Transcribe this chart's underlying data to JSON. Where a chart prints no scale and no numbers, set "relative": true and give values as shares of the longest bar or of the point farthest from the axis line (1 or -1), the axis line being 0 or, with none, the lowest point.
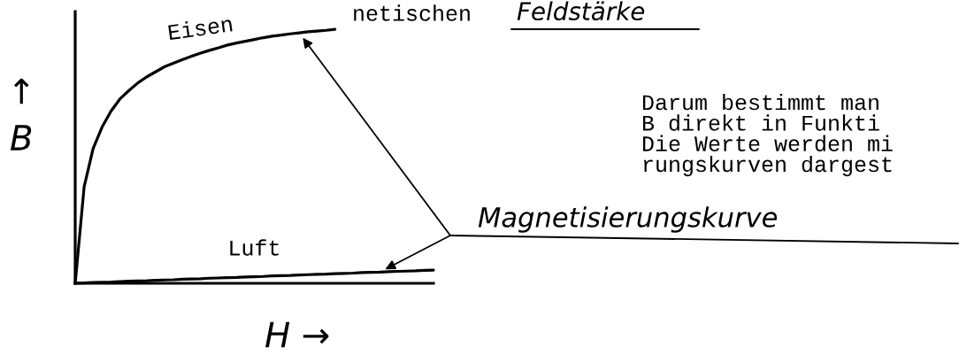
{
  "chart_data": {
    "type": "line",
    "relative": true,
    "line_style": "solid",
    "xlabel": "H →",
    "ylabel": "↑\nB",
    "categories": [
      null,
      null,
      null,
      null,
      null,
      null,
      null,
      null,
      null,
      null,
      null,
      null,
      null,
      null,
      null,
      null,
      null,
      null,
      null,
      null,
      null,
      null,
      null,
      null,
      null,
      null,
      null,
      null,
      null,
      null,
      null,
      null,
      null,
      null,
      null,
      null,
      null,
      null,
      null,
      null,
      null
    ],
    "series": [
      {
        "name": "Eisen",
        "color": "#000000",
        "values": [
          0,
          0.38,
          0.53,
          0.615,
          0.678,
          0.726,
          0.759,
          0.789,
          0.813,
          0.833,
          0.853,
          0.867,
          0.881,
          0.894,
          0.906,
          0.917,
          0.927,
          0.938,
          0.946,
          0.953,
          0.96,
          0.967,
          0.973,
          0.977,
          0.982,
          0.986,
          0.99,
          0.993,
          0.996,
          1.0,
          null,
          null,
          null,
          null,
          null,
          null,
          null,
          null,
          null,
          null,
          null
        ]
      },
      {
        "name": "Luft",
        "color": "#000000",
        "values": [
          0,
          0.001,
          0.003,
          0.004,
          0.005,
          0.007,
          0.008,
          0.009,
          0.01,
          0.012,
          0.013,
          0.014,
          0.016,
          0.017,
          0.018,
          0.02,
          0.021,
          0.022,
          0.023,
          0.025,
          0.026,
          0.027,
          0.029,
          0.03,
          0.031,
          0.033,
          0.034,
          0.035,
          0.036,
          0.038,
          0.039,
          0.04,
          0.042,
          0.043,
          0.044,
          0.046,
          0.047,
          0.048,
          0.049,
          0.051,
          0.052
        ]
      }
    ],
    "annotations": [
      "netischen",
      "Feldstärke",
      "Darum bestimmt man\nB direkt in Funkti\nDie Werte werden mi\nrungskurven dargest",
      "Magnetisierungskurve"
    ]
  }
}
